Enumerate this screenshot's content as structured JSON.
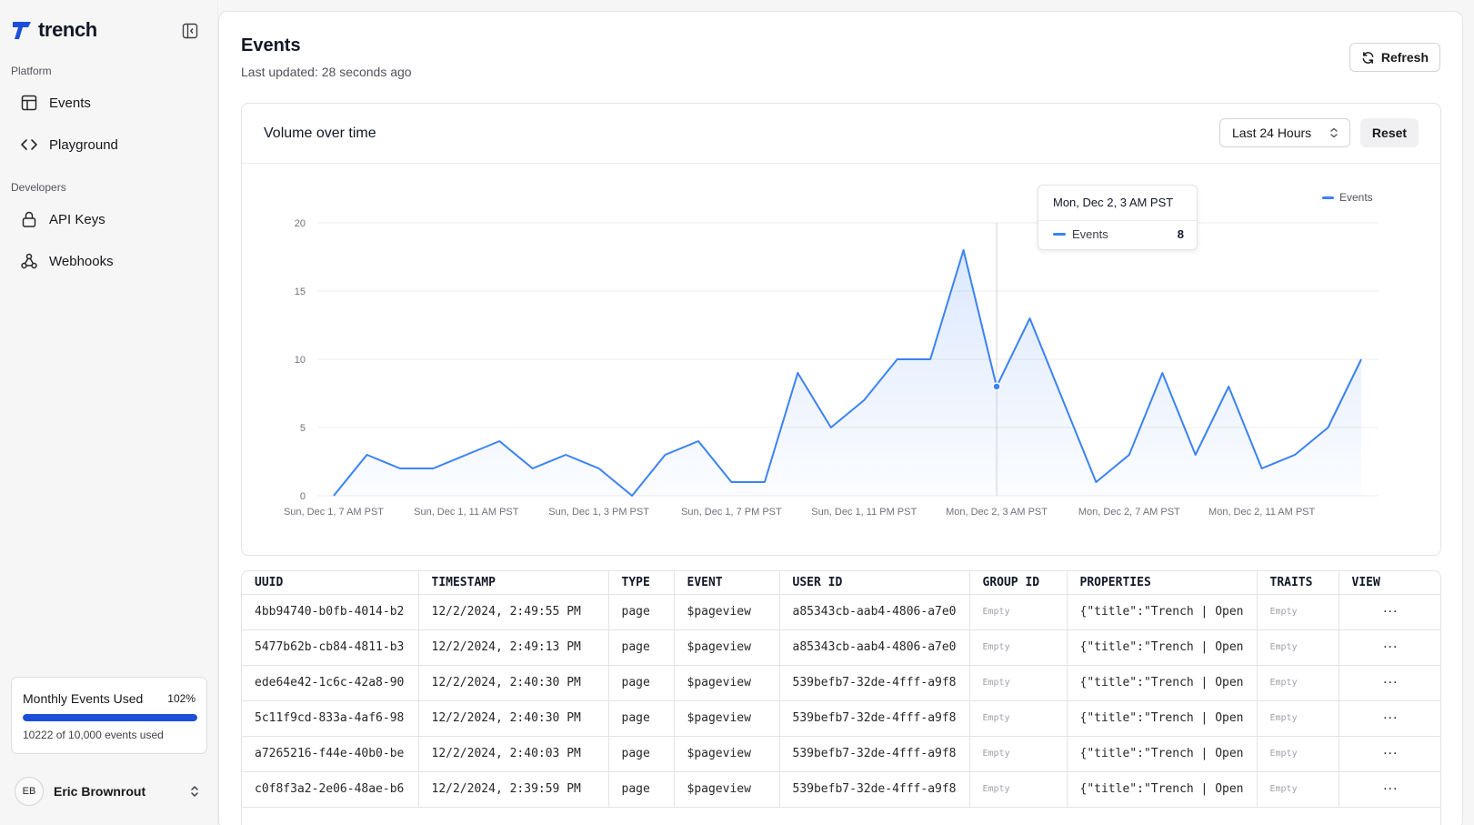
{
  "brand": {
    "name": "trench"
  },
  "sidebar": {
    "sections": [
      {
        "label": "Platform",
        "items": [
          {
            "label": "Events",
            "icon": "table-icon"
          },
          {
            "label": "Playground",
            "icon": "code-icon"
          }
        ]
      },
      {
        "label": "Developers",
        "items": [
          {
            "label": "API Keys",
            "icon": "lock-icon"
          },
          {
            "label": "Webhooks",
            "icon": "webhook-icon"
          }
        ]
      }
    ],
    "usage": {
      "title": "Monthly Events Used",
      "percent_label": "102%",
      "fill_fraction": 1.0,
      "detail": "10222 of 10,000 events used",
      "bar_color": "#1d4ed8"
    },
    "user": {
      "initials": "EB",
      "name": "Eric Brownrout"
    }
  },
  "header": {
    "title": "Events",
    "subtitle": "Last updated: 28 seconds ago",
    "refresh_label": "Refresh"
  },
  "chart_card": {
    "title": "Volume over time",
    "range_select": "Last 24 Hours",
    "reset_label": "Reset",
    "tooltip": {
      "title": "Mon, Dec 2, 3 AM PST",
      "series": "Events",
      "value": "8"
    }
  },
  "chart_data": {
    "type": "area",
    "series": [
      {
        "name": "Events",
        "color": "#3b82f6",
        "values": [
          0,
          3,
          2,
          2,
          3,
          4,
          2,
          3,
          2,
          0,
          3,
          4,
          1,
          1,
          9,
          5,
          7,
          10,
          10,
          18,
          8,
          13,
          7,
          1,
          3,
          9,
          3,
          8,
          2,
          3,
          5,
          10
        ]
      }
    ],
    "x_tick_labels": [
      "Sun, Dec 1, 7 AM PST",
      "Sun, Dec 1, 11 AM PST",
      "Sun, Dec 1, 3 PM PST",
      "Sun, Dec 1, 7 PM PST",
      "Sun, Dec 1, 11 PM PST",
      "Mon, Dec 2, 3 AM PST",
      "Mon, Dec 2, 7 AM PST",
      "Mon, Dec 2, 11 AM PST"
    ],
    "y_ticks": [
      0,
      5,
      10,
      15,
      20
    ],
    "ylim": [
      0,
      20
    ],
    "grid": true,
    "legend": "top-right",
    "highlight_index": 20
  },
  "table": {
    "columns": [
      "UUID",
      "TIMESTAMP",
      "TYPE",
      "EVENT",
      "USER ID",
      "GROUP ID",
      "PROPERTIES",
      "TRAITS",
      "VIEW"
    ],
    "rows": [
      {
        "uuid": "4bb94740-b0fb-4014-b2",
        "timestamp": "12/2/2024, 2:49:55 PM",
        "type": "page",
        "event": "$pageview",
        "user_id": "a85343cb-aab4-4806-a7e0",
        "group_id": "Empty",
        "properties": "{\"title\":\"Trench | Open",
        "traits": "Empty",
        "view": "···"
      },
      {
        "uuid": "5477b62b-cb84-4811-b3",
        "timestamp": "12/2/2024, 2:49:13 PM",
        "type": "page",
        "event": "$pageview",
        "user_id": "a85343cb-aab4-4806-a7e0",
        "group_id": "Empty",
        "properties": "{\"title\":\"Trench | Open",
        "traits": "Empty",
        "view": "···"
      },
      {
        "uuid": "ede64e42-1c6c-42a8-90",
        "timestamp": "12/2/2024, 2:40:30 PM",
        "type": "page",
        "event": "$pageview",
        "user_id": "539befb7-32de-4fff-a9f8",
        "group_id": "Empty",
        "properties": "{\"title\":\"Trench | Open",
        "traits": "Empty",
        "view": "···"
      },
      {
        "uuid": "5c11f9cd-833a-4af6-98",
        "timestamp": "12/2/2024, 2:40:30 PM",
        "type": "page",
        "event": "$pageview",
        "user_id": "539befb7-32de-4fff-a9f8",
        "group_id": "Empty",
        "properties": "{\"title\":\"Trench | Open",
        "traits": "Empty",
        "view": "···"
      },
      {
        "uuid": "a7265216-f44e-40b0-be",
        "timestamp": "12/2/2024, 2:40:03 PM",
        "type": "page",
        "event": "$pageview",
        "user_id": "539befb7-32de-4fff-a9f8",
        "group_id": "Empty",
        "properties": "{\"title\":\"Trench | Open",
        "traits": "Empty",
        "view": "···"
      },
      {
        "uuid": "c0f8f3a2-2e06-48ae-b6",
        "timestamp": "12/2/2024, 2:39:59 PM",
        "type": "page",
        "event": "$pageview",
        "user_id": "539befb7-32de-4fff-a9f8",
        "group_id": "Empty",
        "properties": "{\"title\":\"Trench | Open",
        "traits": "Empty",
        "view": "···"
      }
    ]
  }
}
